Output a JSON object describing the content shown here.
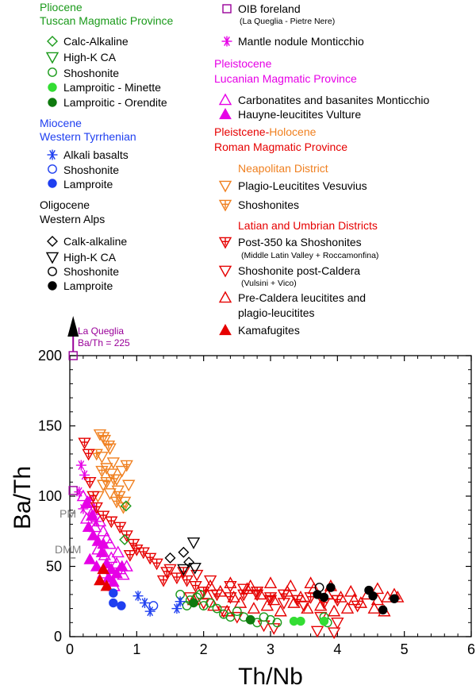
{
  "colors": {
    "green": "#1a9a1a",
    "darkgreen": "#0f7a0f",
    "lightgreen": "#33dd33",
    "blue": "#1f3ff0",
    "magenta": "#e600e6",
    "purple": "#990099",
    "orange": "#f08020",
    "red": "#e60000",
    "black": "#000000",
    "gray": "#808080"
  },
  "legend": {
    "left": {
      "pliocene_head": "Pliocene",
      "pliocene_sub": "Tuscan Magmatic Province",
      "calc_alkaline": "Calc-Alkaline",
      "highk_ca": "High-K CA",
      "shoshonite": "Shoshonite",
      "lamp_minette": "Lamproitic - Minette",
      "lamp_orendite": "Lamproitic - Orendite",
      "miocene_head": "Miocene",
      "miocene_sub": "Western Tyrrhenian",
      "alkali_basalts": "Alkali basalts",
      "mio_shoshonite": "Shoshonite",
      "mio_lamproite": "Lamproite",
      "oligocene_head": "Oligocene",
      "oligocene_sub": "Western Alps",
      "oli_calk": "Calk-alkaline",
      "oli_highk": "High-K CA",
      "oli_shoshonite": "Shoshonite",
      "oli_lamproite": "Lamproite"
    },
    "right": {
      "oib": "OIB foreland",
      "oib_sub": "(La Queglia - Pietre Nere)",
      "mantle": "Mantle nodule Monticchio",
      "pleist_head": "Pleistocene",
      "pleist_sub": "Lucanian Magmatic Province",
      "carbonatites": "Carbonatites and basanites Monticchio",
      "hauyne": "Hauyne-leucitites Vulture",
      "roman_head_a": "Pleistcene-",
      "roman_head_b": "Holocene",
      "roman_sub": "Roman Magmatic Province",
      "neapolitan": "Neapolitan District",
      "plagio_vesuvius": "Plagio-Leucitites Vesuvius",
      "nea_shoshonites": "Shoshonites",
      "latian": "Latian and Umbrian Districts",
      "post350": "Post-350 ka Shoshonites",
      "post350_sub": "(Middle Latin Valley + Roccamonfina)",
      "shosh_post_caldera": "Shoshonite post-Caldera",
      "shosh_post_caldera_sub": "(Vulsini + Vico)",
      "pre_caldera_1": "Pre-Caldera leucitites and",
      "pre_caldera_2": "plagio-leucitites",
      "kamafugites": "Kamafugites"
    }
  },
  "chart_data": {
    "type": "scatter",
    "title": "",
    "xlabel": "Th/Nb",
    "ylabel": "Ba/Th",
    "xlim": [
      0,
      6
    ],
    "ylim": [
      0,
      200
    ],
    "x_ticks": [
      0,
      1,
      2,
      3,
      4,
      5,
      6
    ],
    "y_ticks": [
      0,
      50,
      100,
      150,
      200
    ],
    "annotations": {
      "la_queglia_1": "La Queglia",
      "la_queglia_2": "Ba/Th = 225",
      "pm": "PM",
      "dmm": "DMM"
    },
    "reference_points": [
      {
        "name": "PM",
        "x": 0.05,
        "y": 88
      },
      {
        "name": "DMM",
        "x": 0.05,
        "y": 56
      }
    ],
    "series": [
      {
        "name": "OIB foreland",
        "marker": "square",
        "color": "purple",
        "points": [
          [
            0.05,
            104
          ],
          [
            0.05,
            200
          ]
        ]
      },
      {
        "name": "Mantle nodule Monticchio",
        "marker": "asterisk",
        "color": "magenta",
        "points": [
          [
            0.17,
            122
          ],
          [
            0.22,
            115
          ],
          [
            0.14,
            103
          ],
          [
            0.3,
            97
          ],
          [
            0.36,
            88
          ],
          [
            0.2,
            91
          ],
          [
            0.4,
            82
          ]
        ]
      },
      {
        "name": "Carbonatites and basanites Monticchio",
        "marker": "triangle-up",
        "color": "magenta",
        "points": [
          [
            0.2,
            100
          ],
          [
            0.3,
            96
          ],
          [
            0.35,
            90
          ],
          [
            0.25,
            84
          ],
          [
            0.45,
            82
          ],
          [
            0.38,
            78
          ],
          [
            0.5,
            75
          ],
          [
            0.55,
            70
          ],
          [
            0.6,
            66
          ],
          [
            0.42,
            62
          ],
          [
            0.52,
            58
          ],
          [
            0.62,
            56
          ],
          [
            0.7,
            52
          ],
          [
            0.75,
            48
          ],
          [
            0.5,
            45
          ],
          [
            0.6,
            40
          ],
          [
            0.8,
            44
          ],
          [
            0.66,
            36
          ],
          [
            0.72,
            60
          ],
          [
            0.85,
            50
          ]
        ]
      },
      {
        "name": "Hauyne-leucitites Vulture",
        "marker": "triangle-up-filled",
        "color": "magenta",
        "points": [
          [
            0.28,
            78
          ],
          [
            0.35,
            72
          ],
          [
            0.42,
            68
          ],
          [
            0.48,
            60
          ],
          [
            0.3,
            55
          ],
          [
            0.55,
            52
          ],
          [
            0.62,
            48
          ],
          [
            0.4,
            50
          ],
          [
            0.7,
            45
          ],
          [
            0.58,
            42
          ],
          [
            0.5,
            66
          ],
          [
            0.25,
            95
          ],
          [
            0.33,
            86
          ],
          [
            0.65,
            39
          ],
          [
            0.78,
            50
          ]
        ]
      },
      {
        "name": "Plagio-Leucitites Vesuvius",
        "marker": "triangle-down",
        "color": "orange",
        "points": [
          [
            0.45,
            144
          ],
          [
            0.52,
            140
          ],
          [
            0.6,
            134
          ],
          [
            0.48,
            128
          ],
          [
            0.55,
            120
          ],
          [
            0.62,
            116
          ],
          [
            0.7,
            112
          ],
          [
            0.78,
            118
          ],
          [
            0.5,
            108
          ],
          [
            0.6,
            102
          ],
          [
            0.72,
            104
          ],
          [
            0.82,
            96
          ],
          [
            0.88,
            108
          ],
          [
            0.42,
            100
          ],
          [
            0.65,
            124
          ]
        ]
      },
      {
        "name": "Neapolitan Shoshonites",
        "marker": "triangle-down-cross",
        "color": "orange",
        "points": [
          [
            0.5,
            142
          ],
          [
            0.58,
            136
          ],
          [
            0.4,
            130
          ],
          [
            0.48,
            118
          ],
          [
            0.66,
            112
          ],
          [
            0.74,
            100
          ],
          [
            0.8,
            92
          ],
          [
            0.55,
            110
          ],
          [
            0.85,
            122
          ],
          [
            0.7,
            96
          ]
        ]
      },
      {
        "name": "Post-350 ka Shoshonites",
        "marker": "triangle-down-cross",
        "color": "red",
        "points": [
          [
            0.22,
            138
          ],
          [
            0.28,
            130
          ],
          [
            0.3,
            110
          ],
          [
            0.35,
            100
          ],
          [
            0.4,
            92
          ],
          [
            0.5,
            86
          ],
          [
            0.62,
            82
          ],
          [
            0.75,
            78
          ],
          [
            0.85,
            72
          ],
          [
            0.95,
            66
          ],
          [
            1.0,
            62
          ],
          [
            1.1,
            60
          ],
          [
            1.2,
            56
          ],
          [
            1.3,
            52
          ],
          [
            1.45,
            46
          ],
          [
            1.6,
            42
          ],
          [
            1.75,
            40
          ],
          [
            1.88,
            36
          ],
          [
            2.0,
            32
          ],
          [
            2.2,
            30
          ],
          [
            2.4,
            28
          ],
          [
            2.6,
            30
          ],
          [
            2.8,
            32
          ],
          [
            3.0,
            28
          ],
          [
            3.2,
            30
          ],
          [
            3.4,
            26
          ],
          [
            3.6,
            28
          ],
          [
            3.8,
            24
          ],
          [
            4.0,
            26
          ],
          [
            1.4,
            40
          ],
          [
            1.7,
            46
          ],
          [
            0.9,
            58
          ]
        ]
      },
      {
        "name": "Shoshonite post-Caldera",
        "marker": "triangle-down",
        "color": "red",
        "points": [
          [
            1.5,
            48
          ],
          [
            1.9,
            44
          ],
          [
            2.1,
            40
          ],
          [
            2.4,
            36
          ],
          [
            2.6,
            34
          ],
          [
            2.8,
            30
          ],
          [
            3.0,
            26
          ],
          [
            3.2,
            24
          ],
          [
            3.5,
            22
          ],
          [
            3.75,
            14
          ],
          [
            4.0,
            10
          ],
          [
            2.9,
            8
          ],
          [
            3.05,
            6
          ],
          [
            3.7,
            4
          ],
          [
            3.95,
            3
          ],
          [
            2.3,
            18
          ],
          [
            2.5,
            14
          ],
          [
            2.0,
            24
          ],
          [
            1.8,
            28
          ],
          [
            4.3,
            22
          ]
        ]
      },
      {
        "name": "Pre-Caldera leucitites and plagio-leucitites",
        "marker": "triangle-up",
        "color": "red",
        "points": [
          [
            1.85,
            26
          ],
          [
            2.05,
            30
          ],
          [
            2.25,
            32
          ],
          [
            2.45,
            28
          ],
          [
            2.65,
            34
          ],
          [
            2.85,
            30
          ],
          [
            3.05,
            26
          ],
          [
            3.25,
            32
          ],
          [
            3.45,
            28
          ],
          [
            3.65,
            34
          ],
          [
            3.85,
            30
          ],
          [
            4.05,
            28
          ],
          [
            4.25,
            26
          ],
          [
            4.45,
            30
          ],
          [
            4.6,
            26
          ],
          [
            4.75,
            28
          ],
          [
            2.15,
            22
          ],
          [
            2.35,
            18
          ],
          [
            2.55,
            24
          ],
          [
            2.75,
            20
          ],
          [
            2.95,
            22
          ],
          [
            3.15,
            18
          ],
          [
            3.35,
            24
          ],
          [
            3.55,
            20
          ],
          [
            3.75,
            22
          ],
          [
            3.95,
            18
          ],
          [
            4.15,
            20
          ],
          [
            4.35,
            24
          ],
          [
            4.55,
            20
          ],
          [
            4.7,
            18
          ],
          [
            4.85,
            30
          ],
          [
            4.9,
            28
          ],
          [
            4.6,
            34
          ],
          [
            4.2,
            32
          ],
          [
            3.9,
            36
          ],
          [
            3.6,
            38
          ],
          [
            3.3,
            36
          ],
          [
            3.0,
            38
          ],
          [
            2.7,
            36
          ],
          [
            2.4,
            38
          ],
          [
            2.1,
            36
          ]
        ]
      },
      {
        "name": "Kamafugites",
        "marker": "triangle-up-filled",
        "color": "red",
        "points": [
          [
            0.45,
            40
          ],
          [
            0.55,
            36
          ],
          [
            0.5,
            48
          ]
        ]
      },
      {
        "name": "Calc-Alkaline (Tuscan)",
        "marker": "diamond",
        "color": "green",
        "points": [
          [
            0.84,
            93
          ],
          [
            0.82,
            69
          ]
        ]
      },
      {
        "name": "Shoshonite (Tuscan)",
        "marker": "circle",
        "color": "green",
        "points": [
          [
            1.65,
            30
          ],
          [
            1.8,
            26
          ],
          [
            1.9,
            28
          ],
          [
            2.0,
            22
          ],
          [
            2.1,
            24
          ],
          [
            2.2,
            20
          ],
          [
            2.3,
            16
          ],
          [
            2.4,
            14
          ],
          [
            2.5,
            18
          ],
          [
            2.6,
            14
          ],
          [
            2.7,
            12
          ],
          [
            2.8,
            10
          ],
          [
            2.9,
            14
          ],
          [
            3.0,
            12
          ],
          [
            3.1,
            10
          ],
          [
            3.8,
            14
          ],
          [
            3.85,
            10
          ],
          [
            1.95,
            30
          ],
          [
            1.75,
            22
          ]
        ]
      },
      {
        "name": "Lamproitic - Minette",
        "marker": "circle-filled",
        "color": "lightgreen",
        "points": [
          [
            3.35,
            11
          ],
          [
            3.45,
            11
          ],
          [
            3.8,
            11
          ]
        ]
      },
      {
        "name": "Lamproitic - Orendite",
        "marker": "circle-filled",
        "color": "darkgreen",
        "points": [
          [
            2.7,
            12
          ],
          [
            1.85,
            24
          ]
        ]
      },
      {
        "name": "Alkali basalts",
        "marker": "asterisk",
        "color": "blue",
        "points": [
          [
            1.02,
            29
          ],
          [
            1.12,
            24
          ],
          [
            1.2,
            18
          ],
          [
            1.6,
            20
          ],
          [
            1.65,
            25
          ]
        ]
      },
      {
        "name": "Shoshonite (Miocene)",
        "marker": "circle",
        "color": "blue",
        "points": [
          [
            1.25,
            22
          ]
        ]
      },
      {
        "name": "Lamproite (Miocene)",
        "marker": "circle-filled",
        "color": "blue",
        "points": [
          [
            0.65,
            31
          ],
          [
            0.65,
            24
          ],
          [
            0.77,
            22
          ]
        ]
      },
      {
        "name": "Calk-alkaline (Alps)",
        "marker": "diamond",
        "color": "black",
        "points": [
          [
            1.5,
            56
          ],
          [
            1.7,
            60
          ],
          [
            1.78,
            53
          ]
        ]
      },
      {
        "name": "High-K CA (Alps)",
        "marker": "triangle-down",
        "color": "black",
        "points": [
          [
            1.85,
            67
          ],
          [
            1.87,
            49
          ],
          [
            1.7,
            48
          ]
        ]
      },
      {
        "name": "Shoshonite (Alps)",
        "marker": "circle",
        "color": "black",
        "points": [
          [
            3.73,
            35
          ]
        ]
      },
      {
        "name": "Lamproite (Alps)",
        "marker": "circle-filled",
        "color": "black",
        "points": [
          [
            3.7,
            30
          ],
          [
            3.8,
            28
          ],
          [
            3.9,
            35
          ],
          [
            4.47,
            33
          ],
          [
            4.53,
            29
          ],
          [
            4.68,
            19
          ],
          [
            4.85,
            27
          ]
        ]
      }
    ]
  }
}
